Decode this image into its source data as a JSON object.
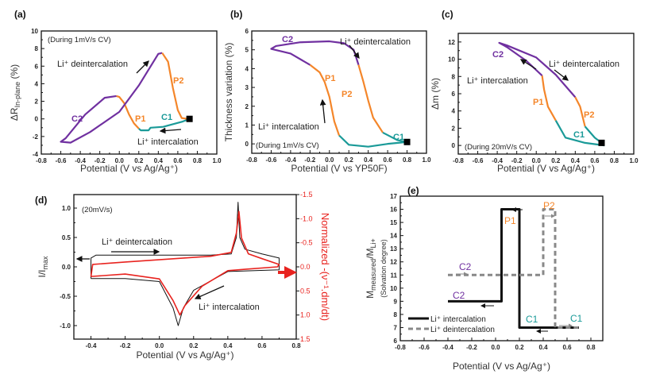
{
  "colors": {
    "C": "#7030a0",
    "P": "#f4862a",
    "C1": "#1a9a98",
    "red": "#e8231f",
    "black": "#111111",
    "dash": "#888888"
  },
  "chart_data": [
    {
      "panel": "(a)",
      "type": "line",
      "xlabel": "Potential (V vs Ag/Ag⁺)",
      "ylabel": {
        "pre": "ΔR",
        "sub": "In-plane",
        "post": " (%)"
      },
      "xlim": [
        -0.8,
        1.0
      ],
      "ylim": [
        -4,
        10
      ],
      "xticks": [
        "-0.8",
        "-0.6",
        "-0.4",
        "-0.2",
        "0.0",
        "0.2",
        "0.4",
        "0.6",
        "0.8",
        "1.0"
      ],
      "yticks": [
        "-4",
        "-2",
        "0",
        "2",
        "4",
        "6",
        "8",
        "10"
      ],
      "marker": [
        0.72,
        0
      ],
      "annotations": [
        "(During 1mV/s CV)",
        "Li⁺ deintercalation",
        "Li⁺ intercalation",
        "P2",
        "C2",
        "P1",
        "C1"
      ],
      "series": [
        {
          "segment": "C1",
          "color": "#1a9a98",
          "points": [
            [
              0.72,
              0
            ],
            [
              0.65,
              -0.3
            ],
            [
              0.45,
              -0.9
            ],
            [
              0.32,
              -1.0
            ],
            [
              0.3,
              -1.3
            ],
            [
              0.22,
              -1.3
            ],
            [
              0.2,
              -1.1
            ]
          ]
        },
        {
          "segment": "P1",
          "color": "#f4862a",
          "points": [
            [
              0.2,
              -1.1
            ],
            [
              0.15,
              -0.5
            ],
            [
              0.1,
              0.5
            ],
            [
              0.05,
              1.8
            ],
            [
              0.0,
              2.5
            ],
            [
              -0.03,
              2.6
            ]
          ]
        },
        {
          "segment": "C2",
          "color": "#7030a0",
          "points": [
            [
              -0.03,
              2.6
            ],
            [
              -0.15,
              2.4
            ],
            [
              -0.35,
              0.5
            ],
            [
              -0.55,
              -2.2
            ],
            [
              -0.6,
              -2.6
            ],
            [
              -0.5,
              -2.7
            ],
            [
              -0.3,
              -1.5
            ],
            [
              0,
              0.8
            ],
            [
              0.2,
              3.8
            ],
            [
              0.4,
              7.4
            ],
            [
              0.44,
              7.5
            ]
          ]
        },
        {
          "segment": "P2",
          "color": "#f4862a",
          "points": [
            [
              0.44,
              7.5
            ],
            [
              0.5,
              6.5
            ],
            [
              0.55,
              3.5
            ],
            [
              0.6,
              1.0
            ],
            [
              0.64,
              0.1
            ],
            [
              0.7,
              0
            ]
          ]
        }
      ]
    },
    {
      "panel": "(b)",
      "type": "line",
      "xlabel": "Potential (V vs YP50F)",
      "ylabel": {
        "pre": "Thickness variation (%)",
        "sub": "",
        "post": ""
      },
      "xlim": [
        -0.8,
        1.0
      ],
      "ylim": [
        -0.5,
        6
      ],
      "xticks": [
        "-0.8",
        "-0.6",
        "-0.4",
        "-0.2",
        "0.0",
        "0.2",
        "0.4",
        "0.6",
        "0.8",
        "1.0"
      ],
      "yticks": [
        "0",
        "1",
        "2",
        "3",
        "4",
        "5",
        "6"
      ],
      "marker": [
        0.8,
        0.1
      ],
      "annotations": [
        "C2",
        "Li⁺ deintercalation",
        "P1",
        "P2",
        "Li⁺ intercalation",
        "(During 1mV/s CV)",
        "C1"
      ],
      "series": [
        {
          "segment": "C1",
          "color": "#1a9a98",
          "points": [
            [
              0.8,
              0.1
            ],
            [
              0.6,
              0
            ],
            [
              0.4,
              -0.15
            ],
            [
              0.2,
              -0.05
            ],
            [
              0.1,
              0.45
            ]
          ]
        },
        {
          "segment": "P1",
          "color": "#f4862a",
          "points": [
            [
              0.1,
              0.45
            ],
            [
              0.05,
              1.2
            ],
            [
              0.0,
              2.5
            ],
            [
              -0.05,
              3.3
            ],
            [
              -0.1,
              3.8
            ],
            [
              -0.2,
              4.2
            ]
          ]
        },
        {
          "segment": "C2",
          "color": "#7030a0",
          "points": [
            [
              -0.2,
              4.2
            ],
            [
              -0.4,
              4.8
            ],
            [
              -0.6,
              5.05
            ],
            [
              -0.55,
              5.2
            ],
            [
              -0.3,
              5.4
            ],
            [
              0,
              5.45
            ],
            [
              0.15,
              5.35
            ],
            [
              0.25,
              5.0
            ],
            [
              0.3,
              4.2
            ]
          ]
        },
        {
          "segment": "P2",
          "color": "#f4862a",
          "points": [
            [
              0.3,
              4.2
            ],
            [
              0.35,
              3.3
            ],
            [
              0.4,
              2.3
            ],
            [
              0.45,
              1.4
            ],
            [
              0.55,
              0.6
            ]
          ]
        },
        {
          "segment": "C1",
          "color": "#1a9a98",
          "points": [
            [
              0.55,
              0.6
            ],
            [
              0.7,
              0.2
            ],
            [
              0.8,
              0.1
            ]
          ]
        }
      ]
    },
    {
      "panel": "(c)",
      "type": "line",
      "xlabel": "Potential (V vs Ag/Ag⁺)",
      "ylabel": {
        "pre": "Δm (%)",
        "sub": "",
        "post": ""
      },
      "xlim": [
        -0.8,
        1.0
      ],
      "ylim": [
        -1,
        13
      ],
      "xticks": [
        "-0.8",
        "-0.6",
        "-0.4",
        "-0.2",
        "0.0",
        "0.2",
        "0.4",
        "0.6",
        "0.8",
        "1.0"
      ],
      "yticks": [
        "0",
        "2",
        "4",
        "6",
        "8",
        "10",
        "12"
      ],
      "marker": [
        0.67,
        0.3
      ],
      "annotations": [
        "C2",
        "Li⁺ deintercalation",
        "Li⁺ intercalation",
        "P1",
        "P2",
        "C1",
        "(During 20mV/s CV)"
      ],
      "series": [
        {
          "segment": "C1",
          "color": "#1a9a98",
          "points": [
            [
              0.7,
              0
            ],
            [
              0.5,
              0.3
            ],
            [
              0.3,
              0.9
            ],
            [
              0.2,
              2.9
            ]
          ]
        },
        {
          "segment": "P1",
          "color": "#f4862a",
          "points": [
            [
              0.2,
              2.9
            ],
            [
              0.12,
              4.5
            ],
            [
              0.08,
              6.5
            ],
            [
              0.06,
              8.1
            ]
          ]
        },
        {
          "segment": "C2",
          "color": "#7030a0",
          "points": [
            [
              0.06,
              8.1
            ],
            [
              -0.1,
              9.8
            ],
            [
              -0.3,
              11.4
            ],
            [
              -0.38,
              11.9
            ],
            [
              -0.3,
              11.6
            ],
            [
              0,
              10.2
            ],
            [
              0.2,
              8.2
            ],
            [
              0.4,
              5.6
            ]
          ]
        },
        {
          "segment": "P2",
          "color": "#f4862a",
          "points": [
            [
              0.4,
              5.6
            ],
            [
              0.45,
              4.5
            ],
            [
              0.5,
              2.2
            ]
          ]
        },
        {
          "segment": "C1",
          "color": "#1a9a98",
          "points": [
            [
              0.5,
              2.2
            ],
            [
              0.6,
              0.9
            ],
            [
              0.67,
              0.3
            ]
          ]
        }
      ]
    },
    {
      "panel": "(d)",
      "type": "line",
      "xlabel": "Potential (V vs Ag/Ag⁺)",
      "ylabel": {
        "pre": "I/I",
        "sub": "max",
        "post": ""
      },
      "ylabel_right": "Normalized -(ν⁻¹.dm/dt)",
      "xlim": [
        -0.5,
        0.8
      ],
      "ylim": [
        -1.23,
        1.23
      ],
      "ylim_right": [
        1.5,
        -1.5
      ],
      "xticks": [
        "-0.4",
        "-0.2",
        "0.0",
        "0.2",
        "0.4",
        "0.6",
        "0.8"
      ],
      "yticks": [
        "-1.0",
        "-0.5",
        "0.0",
        "0.5",
        "1.0"
      ],
      "yticks_right": [
        "-1.5",
        "-1.0",
        "-0.5",
        "0.0",
        "0.5",
        "1.0",
        "1.5"
      ],
      "annotations": [
        "(20mV/s)",
        "Li⁺ deintercalation",
        "Li⁺ intercalation"
      ],
      "series": [
        {
          "axis": "left",
          "color": "#111111",
          "points": [
            [
              -0.4,
              -0.2
            ],
            [
              -0.4,
              0.15
            ],
            [
              -0.37,
              0.2
            ],
            [
              0.3,
              0.2
            ],
            [
              0.42,
              0.22
            ],
            [
              0.45,
              0.5
            ],
            [
              0.46,
              1.1
            ],
            [
              0.47,
              0.5
            ],
            [
              0.5,
              0.3
            ],
            [
              0.6,
              0.22
            ],
            [
              0.7,
              0.15
            ],
            [
              0.7,
              -0.05
            ],
            [
              0.4,
              -0.08
            ],
            [
              0.2,
              -0.4
            ],
            [
              0.14,
              -0.7
            ],
            [
              0.11,
              -1.0
            ],
            [
              0.08,
              -0.7
            ],
            [
              0.0,
              -0.25
            ],
            [
              -0.2,
              -0.2
            ],
            [
              -0.4,
              -0.2
            ]
          ]
        },
        {
          "axis": "right",
          "color": "#e8231f",
          "points": [
            [
              -0.4,
              0.2
            ],
            [
              -0.39,
              -0.05
            ],
            [
              -0.2,
              -0.1
            ],
            [
              0.3,
              -0.22
            ],
            [
              0.42,
              -0.3
            ],
            [
              0.45,
              -0.7
            ],
            [
              0.465,
              -1.15
            ],
            [
              0.48,
              -0.6
            ],
            [
              0.52,
              -0.27
            ],
            [
              0.6,
              -0.17
            ],
            [
              0.7,
              -0.05
            ],
            [
              0.69,
              0.0
            ],
            [
              0.5,
              0.05
            ],
            [
              0.4,
              0.08
            ],
            [
              0.25,
              0.4
            ],
            [
              0.15,
              0.8
            ],
            [
              0.12,
              1.0
            ],
            [
              0.08,
              0.7
            ],
            [
              0.0,
              0.25
            ],
            [
              -0.2,
              0.15
            ],
            [
              -0.4,
              0.2
            ]
          ]
        }
      ]
    },
    {
      "panel": "(e)",
      "type": "line",
      "xlabel": "Potential (V vs Ag/Ag⁺)",
      "ylabel": {
        "pre": "M",
        "sub": "measured",
        "post": "/M",
        "sub2": "Li+"
      },
      "ylabel2": "(Solvation degree)",
      "xlim": [
        -0.8,
        0.9
      ],
      "ylim": [
        6,
        17
      ],
      "xticks": [
        "-0.8",
        "-0.6",
        "-0.4",
        "-0.2",
        "0.0",
        "0.2",
        "0.4",
        "0.6",
        "0.8"
      ],
      "yticks": [
        "6",
        "7",
        "8",
        "9",
        "10",
        "11",
        "12",
        "13",
        "14",
        "15",
        "16",
        "17"
      ],
      "annotations": [
        "P1",
        "P2",
        "C2",
        "C2",
        "C1",
        "C1"
      ],
      "legend": [
        "Li⁺ intercalation",
        "Li⁺ deintercalation"
      ],
      "legend_position": "bottom-left",
      "series": [
        {
          "name": "Li⁺ intercalation",
          "style": "solid",
          "color": "#111111",
          "points": [
            [
              -0.4,
              9
            ],
            [
              0.05,
              9
            ],
            [
              0.05,
              16
            ],
            [
              0.2,
              16
            ],
            [
              0.2,
              7
            ],
            [
              0.7,
              7
            ]
          ]
        },
        {
          "name": "Li⁺ deintercalation",
          "style": "dashed",
          "color": "#888888",
          "points": [
            [
              -0.4,
              11
            ],
            [
              0.4,
              11
            ],
            [
              0.4,
              16
            ],
            [
              0.5,
              16
            ],
            [
              0.5,
              7
            ],
            [
              0.7,
              7
            ]
          ]
        }
      ]
    }
  ]
}
